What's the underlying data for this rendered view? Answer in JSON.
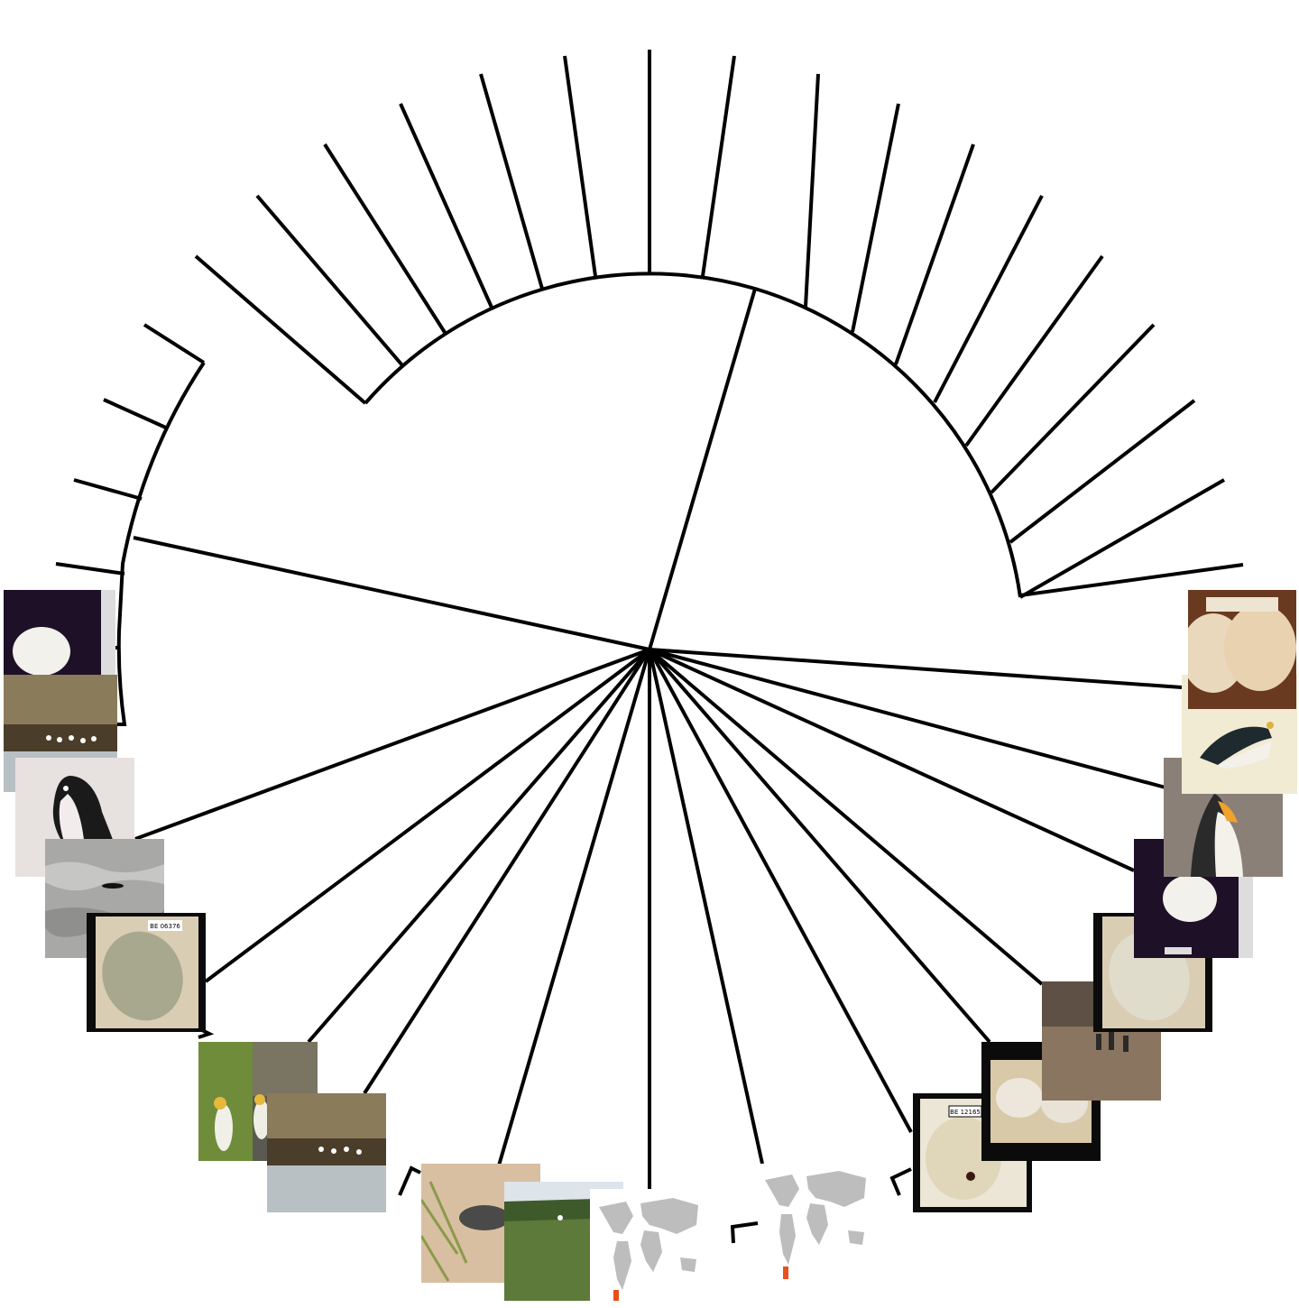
{
  "chart_data": {
    "type": "tree",
    "layout": "circular-fan",
    "leaf_count": 38,
    "tips_with_thumbnails": 22,
    "thumbnail_kinds": [
      "egg-specimen",
      "colony-photo",
      "penguin-illustration",
      "penguin-photo",
      "world-range-map"
    ]
  },
  "colors": {
    "branch": "#000000",
    "background": "#ffffff",
    "map_land": "#bdbdbd",
    "map_range": "#e8501c"
  },
  "labels": {
    "specimen_tag_1": "BE 06376",
    "specimen_tag_2": "BE 12165"
  }
}
